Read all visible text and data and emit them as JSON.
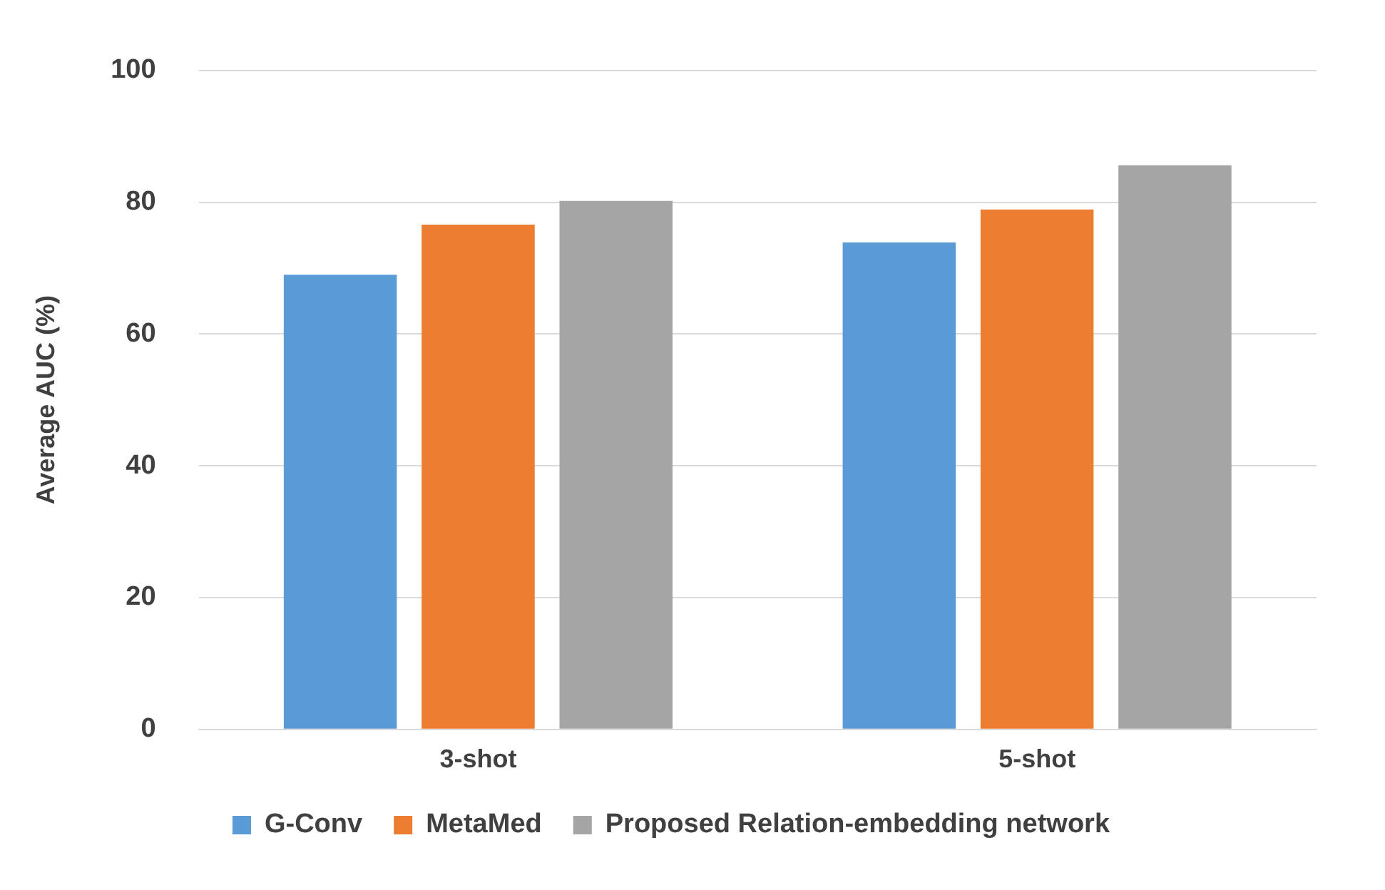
{
  "chart_data": {
    "type": "bar",
    "ylabel": "Average AUC (%)",
    "categories": [
      "3-shot",
      "5-shot"
    ],
    "series": [
      {
        "name": "G-Conv",
        "color": "#5b9bd5",
        "values": [
          69,
          73.9
        ]
      },
      {
        "name": "MetaMed",
        "color": "#ed7d31",
        "values": [
          76.6,
          78.9
        ]
      },
      {
        "name": "Proposed Relation-embedding network",
        "color": "#a5a5a5",
        "values": [
          80.2,
          85.6
        ]
      }
    ],
    "ylim": [
      0,
      100
    ],
    "yticks": [
      0,
      20,
      40,
      60,
      80,
      100
    ],
    "grid": "y",
    "legend": "bottom"
  }
}
